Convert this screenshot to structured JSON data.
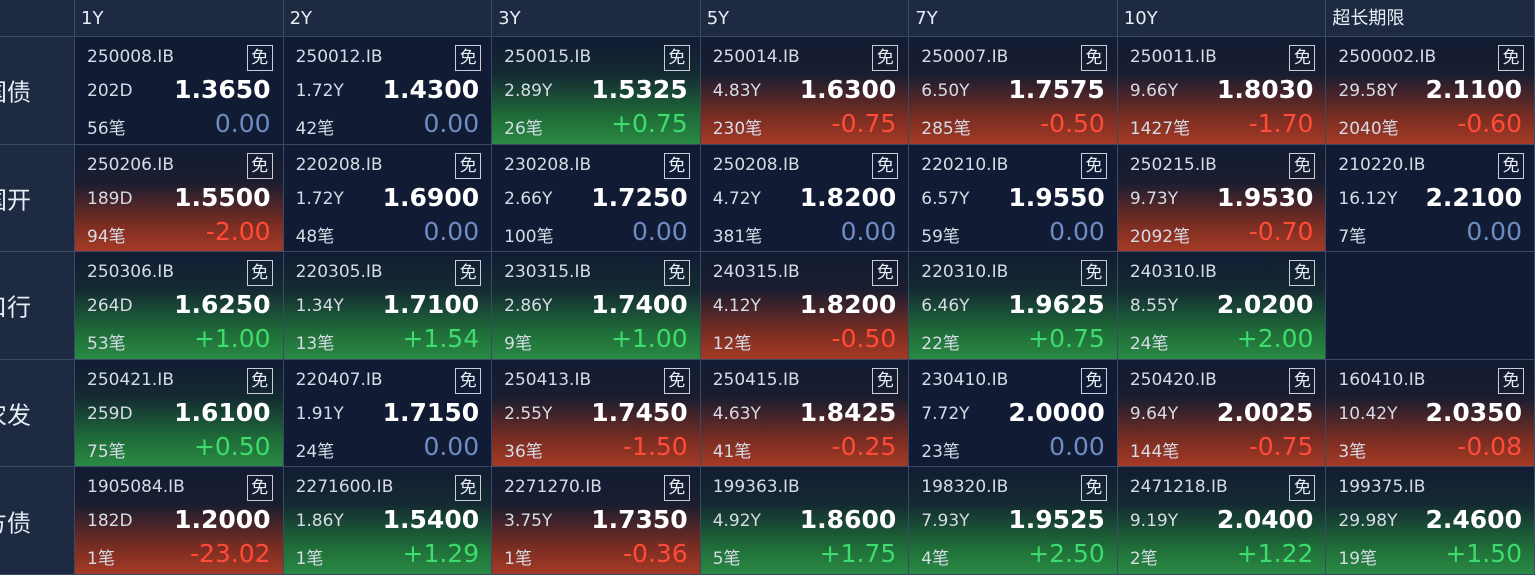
{
  "header": {
    "columns": [
      "1Y",
      "2Y",
      "3Y",
      "5Y",
      "7Y",
      "10Y",
      "超长期限"
    ]
  },
  "rows": [
    {
      "label": "国债",
      "cells": [
        {
          "code": "250008.IB",
          "tag": "免",
          "tenor": "202D",
          "yield": "1.3650",
          "count": "56笔",
          "change": "0.00"
        },
        {
          "code": "250012.IB",
          "tag": "免",
          "tenor": "1.72Y",
          "yield": "1.4300",
          "count": "42笔",
          "change": "0.00"
        },
        {
          "code": "250015.IB",
          "tag": "免",
          "tenor": "2.89Y",
          "yield": "1.5325",
          "count": "26笔",
          "change": "+0.75"
        },
        {
          "code": "250014.IB",
          "tag": "免",
          "tenor": "4.83Y",
          "yield": "1.6300",
          "count": "230笔",
          "change": "-0.75"
        },
        {
          "code": "250007.IB",
          "tag": "免",
          "tenor": "6.50Y",
          "yield": "1.7575",
          "count": "285笔",
          "change": "-0.50"
        },
        {
          "code": "250011.IB",
          "tag": "免",
          "tenor": "9.66Y",
          "yield": "1.8030",
          "count": "1427笔",
          "change": "-1.70"
        },
        {
          "code": "2500002.IB",
          "tag": "免",
          "tenor": "29.58Y",
          "yield": "2.1100",
          "count": "2040笔",
          "change": "-0.60"
        }
      ]
    },
    {
      "label": "国开",
      "cells": [
        {
          "code": "250206.IB",
          "tag": "免",
          "tenor": "189D",
          "yield": "1.5500",
          "count": "94笔",
          "change": "-2.00"
        },
        {
          "code": "220208.IB",
          "tag": "免",
          "tenor": "1.72Y",
          "yield": "1.6900",
          "count": "48笔",
          "change": "0.00"
        },
        {
          "code": "230208.IB",
          "tag": "免",
          "tenor": "2.66Y",
          "yield": "1.7250",
          "count": "100笔",
          "change": "0.00"
        },
        {
          "code": "250208.IB",
          "tag": "免",
          "tenor": "4.72Y",
          "yield": "1.8200",
          "count": "381笔",
          "change": "0.00"
        },
        {
          "code": "220210.IB",
          "tag": "免",
          "tenor": "6.57Y",
          "yield": "1.9550",
          "count": "59笔",
          "change": "0.00"
        },
        {
          "code": "250215.IB",
          "tag": "免",
          "tenor": "9.73Y",
          "yield": "1.9530",
          "count": "2092笔",
          "change": "-0.70"
        },
        {
          "code": "210220.IB",
          "tag": "免",
          "tenor": "16.12Y",
          "yield": "2.2100",
          "count": "7笔",
          "change": "0.00"
        }
      ]
    },
    {
      "label": "进出口行",
      "cells": [
        {
          "code": "250306.IB",
          "tag": "免",
          "tenor": "264D",
          "yield": "1.6250",
          "count": "53笔",
          "change": "+1.00"
        },
        {
          "code": "220305.IB",
          "tag": "免",
          "tenor": "1.34Y",
          "yield": "1.7100",
          "count": "13笔",
          "change": "+1.54"
        },
        {
          "code": "230315.IB",
          "tag": "免",
          "tenor": "2.86Y",
          "yield": "1.7400",
          "count": "9笔",
          "change": "+1.00"
        },
        {
          "code": "240315.IB",
          "tag": "免",
          "tenor": "4.12Y",
          "yield": "1.8200",
          "count": "12笔",
          "change": "-0.50"
        },
        {
          "code": "220310.IB",
          "tag": "免",
          "tenor": "6.46Y",
          "yield": "1.9625",
          "count": "22笔",
          "change": "+0.75"
        },
        {
          "code": "240310.IB",
          "tag": "免",
          "tenor": "8.55Y",
          "yield": "2.0200",
          "count": "24笔",
          "change": "+2.00"
        },
        null
      ]
    },
    {
      "label": "农发",
      "cells": [
        {
          "code": "250421.IB",
          "tag": "免",
          "tenor": "259D",
          "yield": "1.6100",
          "count": "75笔",
          "change": "+0.50"
        },
        {
          "code": "220407.IB",
          "tag": "免",
          "tenor": "1.91Y",
          "yield": "1.7150",
          "count": "24笔",
          "change": "0.00"
        },
        {
          "code": "250413.IB",
          "tag": "免",
          "tenor": "2.55Y",
          "yield": "1.7450",
          "count": "36笔",
          "change": "-1.50"
        },
        {
          "code": "250415.IB",
          "tag": "免",
          "tenor": "4.63Y",
          "yield": "1.8425",
          "count": "41笔",
          "change": "-0.25"
        },
        {
          "code": "230410.IB",
          "tag": "免",
          "tenor": "7.72Y",
          "yield": "2.0000",
          "count": "23笔",
          "change": "0.00"
        },
        {
          "code": "250420.IB",
          "tag": "免",
          "tenor": "9.64Y",
          "yield": "2.0025",
          "count": "144笔",
          "change": "-0.75"
        },
        {
          "code": "160410.IB",
          "tag": "免",
          "tenor": "10.42Y",
          "yield": "2.0350",
          "count": "3笔",
          "change": "-0.08"
        }
      ]
    },
    {
      "label": "地方债",
      "cells": [
        {
          "code": "1905084.IB",
          "tag": "免",
          "tenor": "182D",
          "yield": "1.2000",
          "count": "1笔",
          "change": "-23.02"
        },
        {
          "code": "2271600.IB",
          "tag": "免",
          "tenor": "1.86Y",
          "yield": "1.5400",
          "count": "1笔",
          "change": "+1.29"
        },
        {
          "code": "2271270.IB",
          "tag": "免",
          "tenor": "3.75Y",
          "yield": "1.7350",
          "count": "1笔",
          "change": "-0.36"
        },
        {
          "code": "199363.IB",
          "tag": null,
          "tenor": "4.92Y",
          "yield": "1.8600",
          "count": "5笔",
          "change": "+1.75"
        },
        {
          "code": "198320.IB",
          "tag": "免",
          "tenor": "7.93Y",
          "yield": "1.9525",
          "count": "4笔",
          "change": "+2.50"
        },
        {
          "code": "2471218.IB",
          "tag": "免",
          "tenor": "9.19Y",
          "yield": "2.0400",
          "count": "2笔",
          "change": "+1.22"
        },
        {
          "code": "199375.IB",
          "tag": null,
          "tenor": "29.98Y",
          "yield": "2.4600",
          "count": "19笔",
          "change": "+1.50"
        }
      ]
    }
  ]
}
